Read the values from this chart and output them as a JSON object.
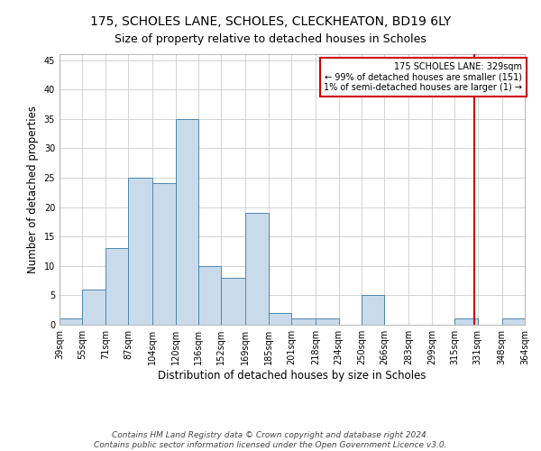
{
  "title": "175, SCHOLES LANE, SCHOLES, CLECKHEATON, BD19 6LY",
  "subtitle": "Size of property relative to detached houses in Scholes",
  "xlabel": "Distribution of detached houses by size in Scholes",
  "ylabel": "Number of detached properties",
  "bin_labels": [
    "39sqm",
    "55sqm",
    "71sqm",
    "87sqm",
    "104sqm",
    "120sqm",
    "136sqm",
    "152sqm",
    "169sqm",
    "185sqm",
    "201sqm",
    "218sqm",
    "234sqm",
    "250sqm",
    "266sqm",
    "283sqm",
    "299sqm",
    "315sqm",
    "331sqm",
    "348sqm",
    "364sqm"
  ],
  "bin_edges": [
    39,
    55,
    71,
    87,
    104,
    120,
    136,
    152,
    169,
    185,
    201,
    218,
    234,
    250,
    266,
    283,
    299,
    315,
    331,
    348,
    364
  ],
  "bar_heights": [
    1,
    6,
    13,
    25,
    24,
    35,
    10,
    8,
    19,
    2,
    1,
    1,
    0,
    5,
    0,
    0,
    0,
    1,
    0,
    1
  ],
  "bar_color": "#c9daea",
  "bar_edge_color": "#4f86b0",
  "property_size": 329,
  "vline_color": "#cc0000",
  "annotation_text": "175 SCHOLES LANE: 329sqm\n← 99% of detached houses are smaller (151)\n1% of semi-detached houses are larger (1) →",
  "annotation_box_color": "#cc0000",
  "ylim": [
    0,
    46
  ],
  "yticks": [
    0,
    5,
    10,
    15,
    20,
    25,
    30,
    35,
    40,
    45
  ],
  "footer": "Contains HM Land Registry data © Crown copyright and database right 2024.\nContains public sector information licensed under the Open Government Licence v3.0.",
  "grid_color": "#cccccc",
  "background_color": "#ffffff",
  "title_fontsize": 10,
  "subtitle_fontsize": 9,
  "axis_label_fontsize": 8.5,
  "tick_fontsize": 7,
  "footer_fontsize": 6.5
}
